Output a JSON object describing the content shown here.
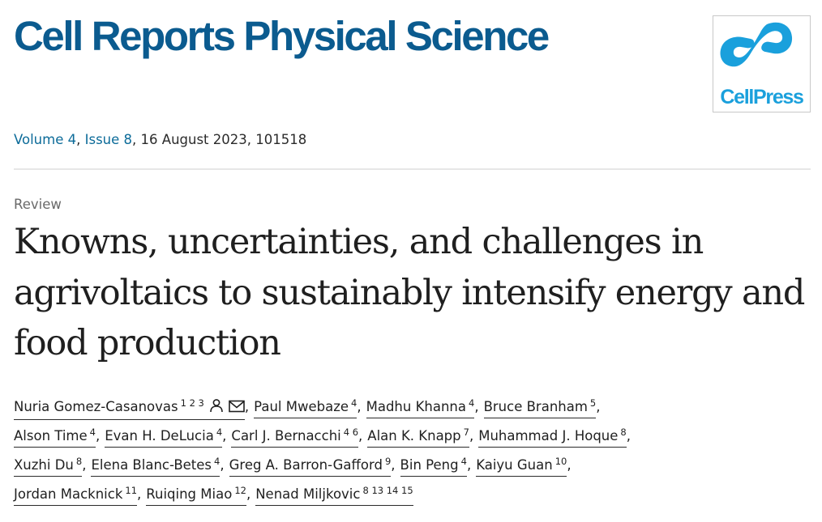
{
  "journal": {
    "title": "Cell Reports Physical Science",
    "publisher_logo_text": "CellPress"
  },
  "publication": {
    "volume_label": "Volume 4",
    "issue_label": "Issue 8",
    "rest": ", 16 August 2023, 101518"
  },
  "article": {
    "type": "Review",
    "title": "Knowns, uncertainties, and challenges in agrivoltaics to sustainably intensify energy and food production"
  },
  "authors": [
    [
      {
        "name": "Nuria Gomez-Casanovas",
        "affil": "1 2 3",
        "icons": [
          "person-icon",
          "envelope-icon"
        ]
      },
      {
        "name": "Paul Mwebaze",
        "affil": "4"
      },
      {
        "name": "Madhu Khanna",
        "affil": "4"
      },
      {
        "name": "Bruce Branham",
        "affil": "5"
      }
    ],
    [
      {
        "name": "Alson Time",
        "affil": "4"
      },
      {
        "name": "Evan H. DeLucia",
        "affil": "4"
      },
      {
        "name": "Carl J. Bernacchi",
        "affil": "4 6"
      },
      {
        "name": "Alan K. Knapp",
        "affil": "7"
      },
      {
        "name": "Muhammad J. Hoque",
        "affil": "8"
      }
    ],
    [
      {
        "name": "Xuzhi Du",
        "affil": "8"
      },
      {
        "name": "Elena Blanc-Betes",
        "affil": "4"
      },
      {
        "name": "Greg A. Barron-Gafford",
        "affil": "9"
      },
      {
        "name": "Bin Peng",
        "affil": "4"
      },
      {
        "name": "Kaiyu Guan",
        "affil": "10"
      }
    ],
    [
      {
        "name": "Jordan Macknick",
        "affil": "11"
      },
      {
        "name": "Ruiqing Miao",
        "affil": "12"
      },
      {
        "name": "Nenad Miljkovic",
        "affil": "8 13 14 15"
      }
    ]
  ],
  "colors": {
    "journal_blue": "#0b5b8f",
    "link_blue": "#0c6b99",
    "cellpress_blue": "#1aa0dc"
  }
}
